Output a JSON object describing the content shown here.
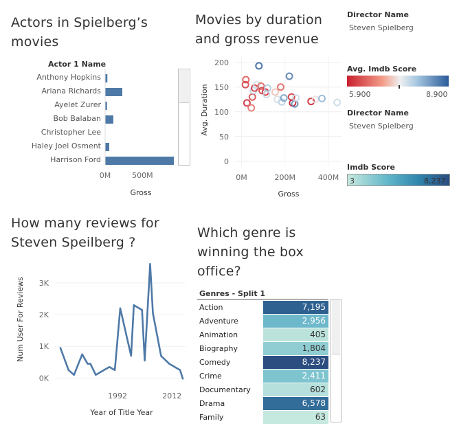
{
  "titles": {
    "actors": "Actors in Spielberg’s movies",
    "scatter": "Movies by duration and gross revenue",
    "reviews": "How many reviews for Steven Speilberg ?",
    "genre": "Which genre is winning the box office?"
  },
  "legend": {
    "director_label": "Director Name",
    "director_value": "Steven Spielberg",
    "imdb_label": "Avg. Imdb Score",
    "imdb_min": "5.900",
    "imdb_max": "8.900",
    "director_label_2": "Director Name",
    "director_value_2": "Steven Spielberg",
    "score_label": "Imdb Score",
    "score_min": "3",
    "score_max": "8,237"
  },
  "colors": {
    "bar": "#4e79a7",
    "line": "#4e79a7",
    "diverging_red": "#c9202f",
    "diverging_blue": "#2a5b9a"
  },
  "chart_data": [
    {
      "type": "bar",
      "orientation": "horizontal",
      "column_header": "Actor 1 Name",
      "categories": [
        "Anthony Hopkins",
        "Ariana Richards",
        "Ayelet Zurer",
        "Bob Balaban",
        "Christopher Lee",
        "Haley Joel Osment",
        "Harrison Ford"
      ],
      "values": [
        30,
        230,
        25,
        110,
        0,
        55,
        920
      ],
      "xlabel": "Gross",
      "xticks": [
        "0M",
        "500M"
      ],
      "xlim": [
        0,
        920
      ]
    },
    {
      "type": "scatter",
      "title": "Movies by duration and gross revenue",
      "xlabel": "Gross",
      "ylabel": "Avg. Duration",
      "xticks": [
        "0M",
        "200M",
        "400M"
      ],
      "yticks": [
        "0",
        "50",
        "100",
        "150",
        "200"
      ],
      "xlim": [
        -30,
        460
      ],
      "ylim": [
        -10,
        215
      ],
      "points": [
        {
          "x": 20,
          "y": 165,
          "score": 6.4
        },
        {
          "x": 18,
          "y": 155,
          "score": 6.2
        },
        {
          "x": 25,
          "y": 118,
          "score": 6.0
        },
        {
          "x": 45,
          "y": 108,
          "score": 6.6
        },
        {
          "x": 50,
          "y": 130,
          "score": 6.3
        },
        {
          "x": 55,
          "y": 143,
          "score": 7.8
        },
        {
          "x": 60,
          "y": 148,
          "score": 6.1
        },
        {
          "x": 70,
          "y": 155,
          "score": 7.6
        },
        {
          "x": 80,
          "y": 193,
          "score": 8.8
        },
        {
          "x": 90,
          "y": 152,
          "score": 6.5
        },
        {
          "x": 95,
          "y": 143,
          "score": 6.2
        },
        {
          "x": 110,
          "y": 140,
          "score": 6.0
        },
        {
          "x": 115,
          "y": 135,
          "score": 7.7
        },
        {
          "x": 120,
          "y": 148,
          "score": 7.9
        },
        {
          "x": 155,
          "y": 140,
          "score": 7.2
        },
        {
          "x": 165,
          "y": 125,
          "score": 7.6
        },
        {
          "x": 180,
          "y": 150,
          "score": 6.5
        },
        {
          "x": 185,
          "y": 120,
          "score": 7.8
        },
        {
          "x": 195,
          "y": 128,
          "score": 8.3
        },
        {
          "x": 220,
          "y": 172,
          "score": 8.6
        },
        {
          "x": 230,
          "y": 130,
          "score": 6.1
        },
        {
          "x": 235,
          "y": 118,
          "score": 5.9
        },
        {
          "x": 245,
          "y": 116,
          "score": 8.5
        },
        {
          "x": 250,
          "y": 128,
          "score": 7.7
        },
        {
          "x": 320,
          "y": 121,
          "score": 6.0
        },
        {
          "x": 340,
          "y": 125,
          "score": 7.4
        },
        {
          "x": 370,
          "y": 127,
          "score": 8.1
        },
        {
          "x": 440,
          "y": 119,
          "score": 7.7
        }
      ]
    },
    {
      "type": "line",
      "title": "How many reviews for Steven Speilberg ?",
      "xlabel": "Year of Title Year",
      "ylabel": "Num User For Reviews",
      "xticks": [
        "1992",
        "2012"
      ],
      "yticks": [
        "0K",
        "1K",
        "2K",
        "3K"
      ],
      "xlim": [
        1969,
        2017
      ],
      "ylim": [
        -100,
        3800
      ],
      "x": [
        1971,
        1974,
        1976,
        1979,
        1981,
        1982,
        1984,
        1987,
        1989,
        1991,
        1993,
        1997,
        1998,
        2001,
        2002,
        2004,
        2005,
        2008,
        2011,
        2015,
        2016
      ],
      "y": [
        950,
        250,
        100,
        750,
        450,
        450,
        100,
        250,
        350,
        250,
        2200,
        700,
        2300,
        2150,
        550,
        3600,
        2050,
        700,
        450,
        250,
        -20
      ]
    },
    {
      "type": "table",
      "title": "Which genre is winning the box office?",
      "column_header": "Genres - Split 1",
      "categories": [
        "Action",
        "Adventure",
        "Animation",
        "Biography",
        "Comedy",
        "Crime",
        "Documentary",
        "Drama",
        "Family"
      ],
      "values": [
        7195,
        2956,
        405,
        1804,
        8237,
        2411,
        602,
        6578,
        63
      ],
      "labels": [
        "7,195",
        "2,956",
        "405",
        "1,804",
        "8,237",
        "2,411",
        "602",
        "6,578",
        "63"
      ],
      "color_range": [
        3,
        8237
      ]
    }
  ]
}
